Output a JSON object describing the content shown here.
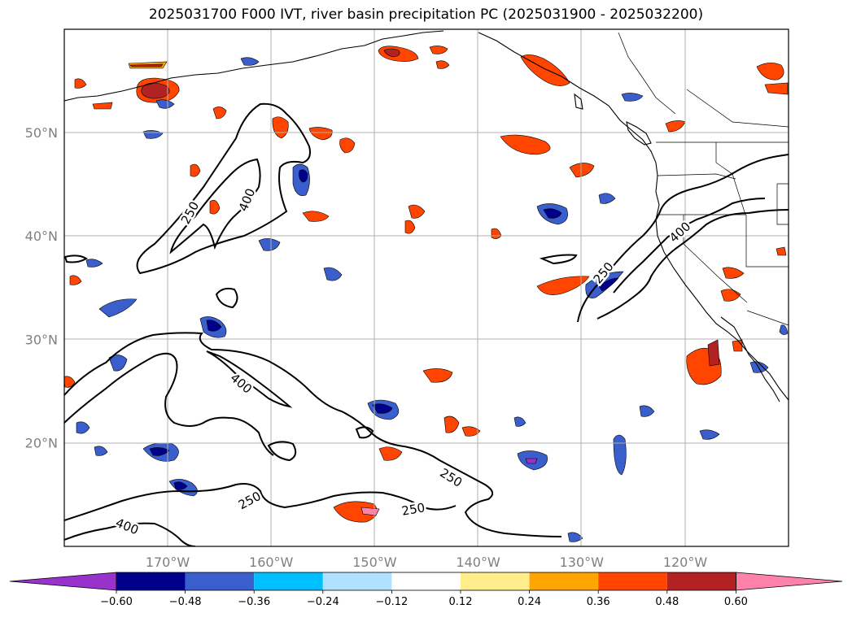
{
  "title": "2025031700 F000 IVT, river basin precipitation PC (2025031900 - 2025032200)",
  "map": {
    "lon_ticks": [
      {
        "lon": -170,
        "label": "170°W"
      },
      {
        "lon": -160,
        "label": "160°W"
      },
      {
        "lon": -150,
        "label": "150°W"
      },
      {
        "lon": -140,
        "label": "140°W"
      },
      {
        "lon": -130,
        "label": "130°W"
      },
      {
        "lon": -120,
        "label": "120°W"
      }
    ],
    "lat_ticks": [
      {
        "lat": 50,
        "label": "50°N"
      },
      {
        "lat": 40,
        "label": "40°N"
      },
      {
        "lat": 30,
        "label": "30°N"
      },
      {
        "lat": 20,
        "label": "20°N"
      }
    ],
    "ivt_contour_labels": [
      "250",
      "400",
      "400",
      "250",
      "400",
      "250",
      "250",
      "250",
      "400"
    ],
    "grid": true
  },
  "colorbar": {
    "colors": [
      "#9932cc",
      "#00008b",
      "#3a5fcd",
      "#00bfff",
      "#b0e2ff",
      "#ffffff",
      "#ffec8b",
      "#ffa500",
      "#ff4500",
      "#b22222",
      "#ff82ab"
    ],
    "tick_labels": [
      "−0.60",
      "−0.48",
      "−0.36",
      "−0.24",
      "−0.12",
      "0.12",
      "0.24",
      "0.36",
      "0.48",
      "0.60"
    ],
    "extend": "both"
  },
  "colors": {
    "coast": "#000000",
    "grid": "#b0b0b0",
    "contour": "#000000"
  }
}
